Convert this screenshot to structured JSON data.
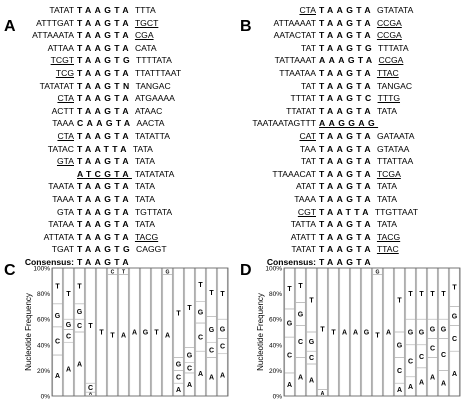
{
  "panels": [
    "A",
    "B",
    "C",
    "D"
  ],
  "alignment_a": {
    "rows": [
      {
        "l": "TATAT",
        "c": "TAAGTA",
        "r": "TTTA"
      },
      {
        "l": "ATTTGAT",
        "c": "TAAGTA",
        "r": "TGCT",
        "ur": true
      },
      {
        "l": "ATTAAATA",
        "c": "TAAGTA",
        "r": "CGA",
        "ur": true
      },
      {
        "l": "ATTAA",
        "c": "TAAGTA",
        "r": "CATA"
      },
      {
        "l": "TCGT",
        "c": "TAAGTG",
        "r": "TTTTATA",
        "ul": true
      },
      {
        "l": "TCG",
        "c": "TAAGTA",
        "r": "TTATTTAAT",
        "ul": true
      },
      {
        "l": "TATATAT",
        "c": "TAAGTN",
        "r": "TANGAC"
      },
      {
        "l": "CTA",
        "c": "TAAGTA",
        "r": "ATGAAAA",
        "ul": true
      },
      {
        "l": "ACTT",
        "c": "TAAGTA",
        "r": "ATAAC"
      },
      {
        "l": "TAAA",
        "c": "CAAGTA",
        "r": "AACTA"
      },
      {
        "l": "CTA",
        "c": "TAAGTA",
        "r": "TATATTA",
        "ul": true
      },
      {
        "l": "TATAC",
        "c": "TAATTA",
        "r": "TATA"
      },
      {
        "l": "GTA",
        "c": "TAAGTA",
        "r": "TATA",
        "ul": true
      },
      {
        "l": "",
        "c": "ATCGTA",
        "r": "TATATATA",
        "uc": true
      },
      {
        "l": "TAATA",
        "c": "TAAGTA",
        "r": "TATA"
      },
      {
        "l": "TAAA",
        "c": "TAAGTA",
        "r": "TATA"
      },
      {
        "l": "GTA",
        "c": "TAAGTA",
        "r": "TGTTATA"
      },
      {
        "l": "TATAA",
        "c": "TAAGTA",
        "r": "TATA"
      },
      {
        "l": "ATTATA",
        "c": "TAAGTA",
        "r": "TACG",
        "ur": true
      },
      {
        "l": "TGAT",
        "c": "TAAGTG",
        "r": "CAGGT"
      }
    ],
    "consensus_label": "Consensus:",
    "consensus": "TAAGTA"
  },
  "alignment_b": {
    "rows": [
      {
        "l": "CTA",
        "c": "TAAGTA",
        "r": "GTATATA",
        "ul": true
      },
      {
        "l": "ATTAAAAT",
        "c": "TAAGTA",
        "r": "CCGA",
        "ur": true
      },
      {
        "l": "AATACTAT",
        "c": "TAAGTA",
        "r": "CCGA",
        "ur": true
      },
      {
        "l": "TAT",
        "c": "TAAGTG",
        "r": "TTTATA"
      },
      {
        "l": "TATTAAAT",
        "c": "AAAGTA",
        "r": "CCGA",
        "ur": true
      },
      {
        "l": "TTAATAA",
        "c": "TAAGTA",
        "r": "TTAC",
        "ur": true
      },
      {
        "l": "TAT",
        "c": "TAAGTA",
        "r": "TANGAC"
      },
      {
        "l": "TTTAT",
        "c": "TAAGTC",
        "r": "TTTG",
        "ur": true
      },
      {
        "l": "TTATAT",
        "c": "TAAGTA",
        "r": "TATA"
      },
      {
        "l": "TAATAATAGTTT",
        "c": "AAGGAG",
        "r": "",
        "uc": true
      },
      {
        "l": "CAT",
        "c": "TAAGTA",
        "r": "GATAATA",
        "ul": true
      },
      {
        "l": "TAA",
        "c": "TAAGTA",
        "r": "GTATAA"
      },
      {
        "l": "TAT",
        "c": "TAAGTA",
        "r": "TTATTAA"
      },
      {
        "l": "TTAAACAT",
        "c": "TAAGTA",
        "r": "TCGA",
        "ur": true
      },
      {
        "l": "ATAT",
        "c": "TAAGTA",
        "r": "TATA"
      },
      {
        "l": "TAAA",
        "c": "TAAGTA",
        "r": "TATA"
      },
      {
        "l": "CGT",
        "c": "TAATTA",
        "r": "TTGTTAAT",
        "ul": true
      },
      {
        "l": "TATTA",
        "c": "TAAGTA",
        "r": "TATA"
      },
      {
        "l": "ATATT",
        "c": "TAAGTA",
        "r": "TACG",
        "ur": true
      },
      {
        "l": "TATAT",
        "c": "TAAGTA",
        "r": "TTAC",
        "ur": true
      }
    ],
    "consensus_label": "Consensus:",
    "consensus": "TAAGTA"
  },
  "chart_data": [
    {
      "type": "bar",
      "panel": "C",
      "ylabel": "Nucleotide Frequency",
      "yticks": [
        "0%",
        "20%",
        "40%",
        "60%",
        "80%",
        "100%"
      ],
      "ylim": [
        0,
        100
      ],
      "columns": [
        [
          {
            "n": "A",
            "v": 32
          },
          {
            "n": "C",
            "v": 22
          },
          {
            "n": "G",
            "v": 18
          },
          {
            "n": "T",
            "v": 28
          }
        ],
        [
          {
            "n": "A",
            "v": 42
          },
          {
            "n": "C",
            "v": 10
          },
          {
            "n": "G",
            "v": 8
          },
          {
            "n": "T",
            "v": 40
          }
        ],
        [
          {
            "n": "A",
            "v": 50
          },
          {
            "n": "C",
            "v": 10
          },
          {
            "n": "G",
            "v": 12
          },
          {
            "n": "T",
            "v": 28
          }
        ],
        [
          {
            "n": "A",
            "v": 3
          },
          {
            "n": "C",
            "v": 7
          },
          {
            "n": "T",
            "v": 90
          }
        ],
        [
          {
            "n": "T",
            "v": 100
          }
        ],
        [
          {
            "n": "T",
            "v": 95
          },
          {
            "n": "C",
            "v": 5
          }
        ],
        [
          {
            "n": "A",
            "v": 95
          },
          {
            "n": "T",
            "v": 5
          }
        ],
        [
          {
            "n": "A",
            "v": 100
          }
        ],
        [
          {
            "n": "G",
            "v": 100
          }
        ],
        [
          {
            "n": "T",
            "v": 100
          }
        ],
        [
          {
            "n": "A",
            "v": 95
          },
          {
            "n": "G",
            "v": 5
          }
        ],
        [
          {
            "n": "A",
            "v": 10
          },
          {
            "n": "C",
            "v": 10
          },
          {
            "n": "G",
            "v": 10
          },
          {
            "n": "T",
            "v": 70
          }
        ],
        [
          {
            "n": "A",
            "v": 18
          },
          {
            "n": "C",
            "v": 8
          },
          {
            "n": "G",
            "v": 12
          },
          {
            "n": "T",
            "v": 62
          }
        ],
        [
          {
            "n": "A",
            "v": 35
          },
          {
            "n": "C",
            "v": 22
          },
          {
            "n": "G",
            "v": 17
          },
          {
            "n": "T",
            "v": 26
          }
        ],
        [
          {
            "n": "A",
            "v": 30
          },
          {
            "n": "C",
            "v": 12
          },
          {
            "n": "G",
            "v": 20
          },
          {
            "n": "T",
            "v": 38
          }
        ],
        [
          {
            "n": "A",
            "v": 33
          },
          {
            "n": "C",
            "v": 12
          },
          {
            "n": "G",
            "v": 15
          },
          {
            "n": "T",
            "v": 40
          }
        ]
      ]
    },
    {
      "type": "bar",
      "panel": "D",
      "ylabel": "Nucleotide Frequency",
      "yticks": [
        "0%",
        "20%",
        "40%",
        "60%",
        "80%",
        "100%"
      ],
      "ylim": [
        0,
        100
      ],
      "columns": [
        [
          {
            "n": "A",
            "v": 18
          },
          {
            "n": "C",
            "v": 28
          },
          {
            "n": "G",
            "v": 22
          },
          {
            "n": "T",
            "v": 32
          }
        ],
        [
          {
            "n": "A",
            "v": 30
          },
          {
            "n": "C",
            "v": 25
          },
          {
            "n": "G",
            "v": 18
          },
          {
            "n": "T",
            "v": 27
          }
        ],
        [
          {
            "n": "A",
            "v": 25
          },
          {
            "n": "C",
            "v": 10
          },
          {
            "n": "G",
            "v": 15
          },
          {
            "n": "T",
            "v": 50
          }
        ],
        [
          {
            "n": "A",
            "v": 5
          },
          {
            "n": "T",
            "v": 95
          }
        ],
        [
          {
            "n": "T",
            "v": 100
          }
        ],
        [
          {
            "n": "A",
            "v": 100
          }
        ],
        [
          {
            "n": "A",
            "v": 100
          }
        ],
        [
          {
            "n": "G",
            "v": 100
          }
        ],
        [
          {
            "n": "T",
            "v": 95
          },
          {
            "n": "G",
            "v": 5
          }
        ],
        [
          {
            "n": "A",
            "v": 100
          }
        ],
        [
          {
            "n": "A",
            "v": 10
          },
          {
            "n": "C",
            "v": 20
          },
          {
            "n": "G",
            "v": 20
          },
          {
            "n": "T",
            "v": 50
          }
        ],
        [
          {
            "n": "A",
            "v": 15
          },
          {
            "n": "C",
            "v": 25
          },
          {
            "n": "G",
            "v": 20
          },
          {
            "n": "T",
            "v": 40
          }
        ],
        [
          {
            "n": "A",
            "v": 22
          },
          {
            "n": "C",
            "v": 18
          },
          {
            "n": "G",
            "v": 20
          },
          {
            "n": "T",
            "v": 40
          }
        ],
        [
          {
            "n": "A",
            "v": 30
          },
          {
            "n": "C",
            "v": 15
          },
          {
            "n": "G",
            "v": 15
          },
          {
            "n": "T",
            "v": 40
          }
        ],
        [
          {
            "n": "A",
            "v": 20
          },
          {
            "n": "C",
            "v": 25
          },
          {
            "n": "G",
            "v": 15
          },
          {
            "n": "T",
            "v": 40
          }
        ],
        [
          {
            "n": "A",
            "v": 35
          },
          {
            "n": "C",
            "v": 20
          },
          {
            "n": "G",
            "v": 15
          },
          {
            "n": "T",
            "v": 30
          }
        ]
      ]
    }
  ]
}
